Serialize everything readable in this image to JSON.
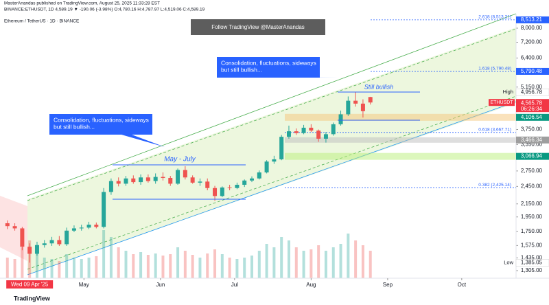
{
  "header": {
    "line1": "MasterAnandas published on TradingView.com, August 25, 2025 11:33:28 EST",
    "line2": "BINANCE:ETHUSDT, 1D 4,589.19 ▼ -190.06 (-3.98%) O:4,780.16 H:4,787.97 L:4,519.06 C:4,589.19",
    "symbol": "Ethereum / TetherUS · 1D · BINANCE",
    "banner": "Follow TradingView @MasterAnandas"
  },
  "footer": "TradingView",
  "chart_data": {
    "type": "candlestick",
    "log_scale": true,
    "xlim": [
      0,
      209
    ],
    "xticks": [
      {
        "value": 34,
        "label": "May"
      },
      {
        "value": 65,
        "label": "Jun"
      },
      {
        "value": 95,
        "label": "Jul"
      },
      {
        "value": 126,
        "label": "Aug"
      },
      {
        "value": 157,
        "label": "Sep"
      },
      {
        "value": 187,
        "label": "Oct"
      }
    ],
    "date_tag": {
      "value": 12,
      "label": "Wed 09 Apr '25"
    },
    "ylim": [
      1233,
      8912
    ],
    "yticks": [
      {
        "value": 8000,
        "label": "8,000.00"
      },
      {
        "value": 7200,
        "label": "7,200.00"
      },
      {
        "value": 6400,
        "label": "6,400.00"
      },
      {
        "value": 5150,
        "label": "5,150.00"
      },
      {
        "value": 3750,
        "label": "3,750.00"
      },
      {
        "value": 3350,
        "label": "3,350.00"
      },
      {
        "value": 2750,
        "label": "2,750.00"
      },
      {
        "value": 2450,
        "label": "2,450.00"
      },
      {
        "value": 2150,
        "label": "2,150.00"
      },
      {
        "value": 1950,
        "label": "1,950.00"
      },
      {
        "value": 1750,
        "label": "1,750.00"
      },
      {
        "value": 1575,
        "label": "1,575.00"
      },
      {
        "value": 1435,
        "label": "1,435.00"
      },
      {
        "value": 1305,
        "label": "1,305.00"
      }
    ],
    "up_color": "#26a69a",
    "down_color": "#ef5350",
    "x": [
      3,
      6,
      9,
      12,
      15,
      18,
      21,
      24,
      27,
      30,
      33,
      36,
      39,
      42,
      45,
      48,
      51,
      54,
      57,
      60,
      63,
      66,
      69,
      72,
      75,
      78,
      81,
      84,
      87,
      90,
      93,
      96,
      99,
      102,
      105,
      108,
      111,
      114,
      117,
      120,
      123,
      126,
      129,
      132,
      135,
      138,
      141,
      144,
      147,
      150
    ],
    "open": [
      1860,
      1820,
      1790,
      1560,
      1480,
      1580,
      1600,
      1640,
      1590,
      1760,
      1790,
      1800,
      1840,
      1810,
      2350,
      2550,
      2500,
      2600,
      2530,
      2620,
      2550,
      2630,
      2610,
      2500,
      2770,
      2620,
      2520,
      2540,
      2420,
      2280,
      2430,
      2420,
      2480,
      2560,
      2600,
      2720,
      2950,
      3000,
      3550,
      3700,
      3650,
      3800,
      3720,
      3500,
      3620,
      3900,
      4200,
      4650,
      4550,
      4780.16
    ],
    "high": [
      1900,
      1860,
      1810,
      1600,
      1620,
      1640,
      1680,
      1690,
      1800,
      1830,
      1840,
      1880,
      1870,
      2420,
      2600,
      2620,
      2650,
      2660,
      2680,
      2680,
      2700,
      2720,
      2650,
      2800,
      2850,
      2660,
      2600,
      2600,
      2460,
      2450,
      2480,
      2520,
      2580,
      2640,
      2760,
      2980,
      3080,
      3600,
      3860,
      3780,
      3880,
      3900,
      3750,
      3680,
      3950,
      4320,
      4800,
      4956.78,
      4700,
      4787.97
    ],
    "low": [
      1780,
      1760,
      1520,
      1385.05,
      1460,
      1550,
      1570,
      1570,
      1570,
      1740,
      1760,
      1780,
      1790,
      1790,
      2300,
      2450,
      2460,
      2500,
      2480,
      2520,
      2500,
      2560,
      2460,
      2480,
      2580,
      2500,
      2460,
      2380,
      2200,
      2260,
      2380,
      2400,
      2440,
      2530,
      2580,
      2700,
      2900,
      2980,
      3500,
      3600,
      3620,
      3680,
      3420,
      3400,
      3580,
      3860,
      4150,
      4450,
      4100,
      4519.06
    ],
    "close": [
      1820,
      1790,
      1560,
      1480,
      1580,
      1600,
      1640,
      1590,
      1760,
      1790,
      1800,
      1840,
      1810,
      2350,
      2550,
      2500,
      2600,
      2530,
      2620,
      2550,
      2630,
      2610,
      2500,
      2770,
      2620,
      2520,
      2540,
      2420,
      2280,
      2430,
      2420,
      2480,
      2560,
      2600,
      2720,
      2950,
      3000,
      3550,
      3700,
      3650,
      3800,
      3720,
      3500,
      3620,
      3900,
      4200,
      4650,
      4550,
      4300,
      4589.19
    ],
    "volume": [
      30,
      28,
      45,
      55,
      40,
      30,
      28,
      25,
      35,
      30,
      28,
      30,
      32,
      70,
      60,
      45,
      40,
      35,
      38,
      34,
      36,
      33,
      35,
      45,
      40,
      34,
      30,
      36,
      42,
      35,
      30,
      28,
      30,
      33,
      40,
      50,
      45,
      60,
      55,
      45,
      40,
      42,
      48,
      40,
      45,
      50,
      65,
      55,
      48,
      40
    ],
    "price_labels": [
      {
        "value": 8513.21,
        "label": "8,513.21",
        "color": "#2962ff"
      },
      {
        "value": 5790.48,
        "label": "5,790.48",
        "color": "#2962ff"
      },
      {
        "value": 4956.78,
        "label": "4,956.78",
        "color": "#ffffff",
        "tag": "High"
      },
      {
        "value": 4589.19,
        "label": "4,589.19",
        "color": "#f23645",
        "tag": "ETHUSDT",
        "sub": "06:26:34"
      },
      {
        "value": 4565.78,
        "label": "4,565.78",
        "color": "#f23645"
      },
      {
        "value": 4106.54,
        "label": "4,106.54",
        "color": "#089981"
      },
      {
        "value": 3466.34,
        "label": "3,466.34",
        "color": "#9e9e9e"
      },
      {
        "value": 3066.94,
        "label": "3,066.94",
        "color": "#089981"
      },
      {
        "value": 1385.05,
        "label": "1,385.05",
        "color": "#ffffff",
        "tag": "Low"
      }
    ],
    "fib_levels": [
      {
        "value": 8513.21,
        "label": "2.618 (8,513.21)"
      },
      {
        "value": 5790.48,
        "label": "1.618 (5,790.48)"
      },
      {
        "value": 3667.71,
        "label": "0.618 (3,667.71)"
      },
      {
        "value": 2425.14,
        "label": "0.382 (2,425.14)"
      }
    ],
    "annotations": [
      {
        "text": [
          "Consolidation, fluctuations, sideways",
          "but still bullish..."
        ]
      },
      {
        "text": [
          "Consolidation, fluctuations, sideways",
          "but still bullish..."
        ]
      },
      {
        "text": "May - July"
      },
      {
        "text": "Still bullish"
      }
    ]
  }
}
